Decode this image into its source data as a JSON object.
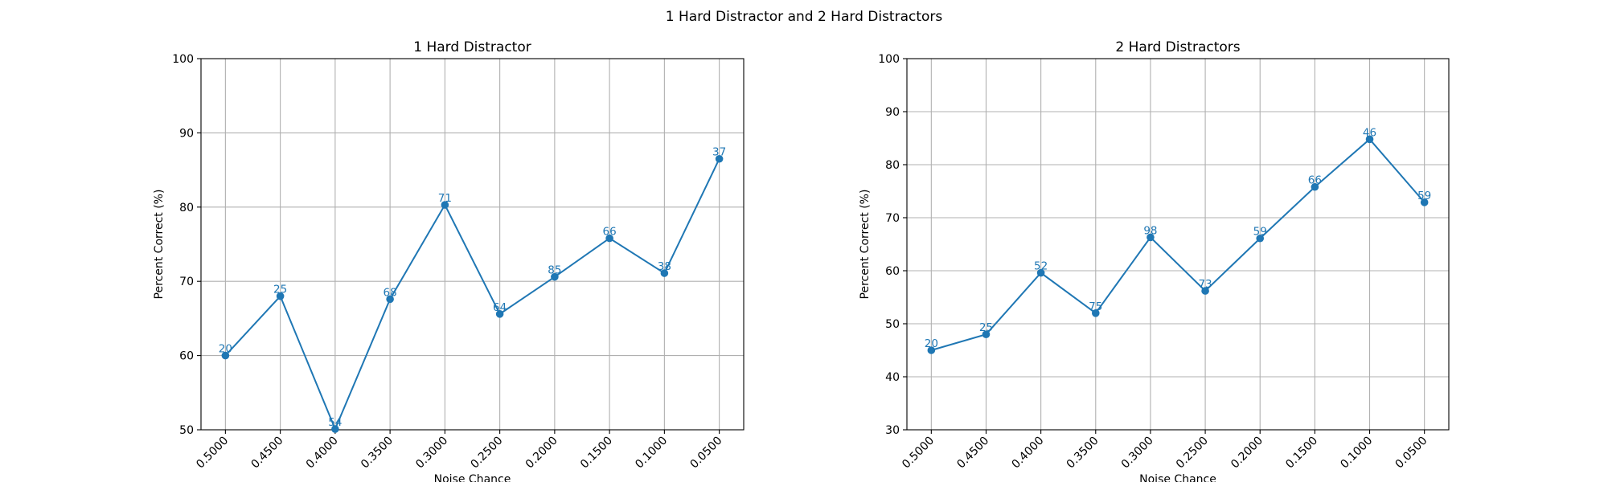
{
  "figure": {
    "title": "1 Hard Distractor and 2 Hard Distractors"
  },
  "colors": {
    "series": "#1f77b4",
    "grid": "#b0b0b0",
    "axes": "#000000",
    "background": "#ffffff"
  },
  "chart_data": [
    {
      "type": "line",
      "title": "1 Hard Distractor",
      "xlabel": "Noise Chance",
      "ylabel": "Percent Correct (%)",
      "x": [
        "0.5000",
        "0.4500",
        "0.4000",
        "0.3500",
        "0.3000",
        "0.2500",
        "0.2000",
        "0.1500",
        "0.1000",
        "0.0500"
      ],
      "ylim": [
        50,
        100
      ],
      "yticks": [
        50,
        60,
        70,
        80,
        90,
        100
      ],
      "grid": true,
      "marker": "circle",
      "series": [
        {
          "values": [
            60,
            68,
            50.1,
            67.6,
            80.3,
            65.6,
            70.6,
            75.8,
            71.1,
            86.5
          ],
          "labels": [
            "20",
            "25",
            "54",
            "68",
            "71",
            "64",
            "85",
            "66",
            "38",
            "37"
          ]
        }
      ]
    },
    {
      "type": "line",
      "title": "2 Hard Distractors",
      "xlabel": "Noise Chance",
      "ylabel": "Percent Correct (%)",
      "x": [
        "0.5000",
        "0.4500",
        "0.4000",
        "0.3500",
        "0.3000",
        "0.2500",
        "0.2000",
        "0.1500",
        "0.1000",
        "0.0500"
      ],
      "ylim": [
        30,
        100
      ],
      "yticks": [
        30,
        40,
        50,
        60,
        70,
        80,
        90,
        100
      ],
      "grid": true,
      "marker": "circle",
      "series": [
        {
          "values": [
            45,
            48,
            59.6,
            52,
            66.3,
            56.2,
            66.1,
            75.8,
            84.8,
            72.9
          ],
          "labels": [
            "20",
            "25",
            "52",
            "75",
            "98",
            "73",
            "59",
            "66",
            "46",
            "59"
          ]
        }
      ]
    }
  ]
}
